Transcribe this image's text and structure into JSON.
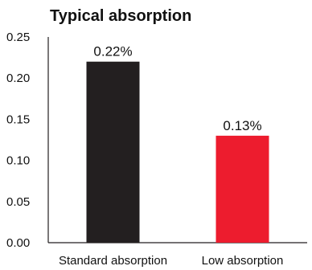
{
  "chart_data": {
    "type": "bar",
    "title": "Typical absorption",
    "xlabel": "",
    "ylabel": "",
    "categories": [
      "Standard absorption",
      "Low absorption"
    ],
    "values": [
      0.22,
      0.13
    ],
    "data_labels": [
      "0.22%",
      "0.13%"
    ],
    "ylim": [
      0,
      0.25
    ],
    "y_ticks": [
      0.0,
      0.05,
      0.1,
      0.15,
      0.2,
      0.25
    ],
    "y_tick_labels": [
      "0.00",
      "0.05",
      "0.10",
      "0.15",
      "0.20",
      "0.25"
    ],
    "bar_colors": [
      "#231f20",
      "#ed1c2e"
    ],
    "grid": false,
    "legend": "none"
  }
}
